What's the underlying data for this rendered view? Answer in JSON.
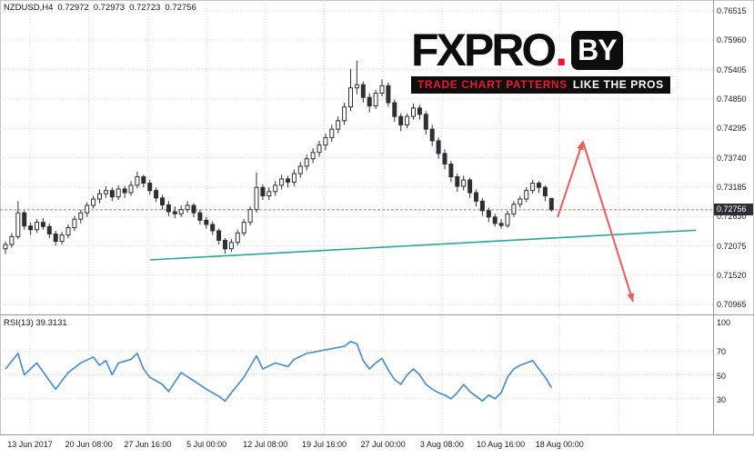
{
  "info_bar": {
    "symbol_period": "NZDUSD,H4",
    "open": "0.72972",
    "high": "0.72973",
    "low": "0.72723",
    "close": "0.72756"
  },
  "logo": {
    "brand": "FXPRO",
    "dot": ".",
    "suffix": "BY",
    "tagline_left": "TRADE CHART PATTERNS",
    "tagline_right": "LIKE THE PROS"
  },
  "price_axis": {
    "labels": [
      "0.76515",
      "0.75960",
      "0.75405",
      "0.74850",
      "0.74295",
      "0.73740",
      "0.73185",
      "0.72630",
      "0.72075",
      "0.71520",
      "0.70965"
    ],
    "current_price": "0.72756"
  },
  "rsi_panel": {
    "label": "RSI(13) 39.3131",
    "axis_labels": [
      "100",
      "70",
      "50",
      "30"
    ]
  },
  "time_axis": {
    "labels": [
      "13 Jun 2017",
      "20 Jun 08:00",
      "27 Jun 16:00",
      "5 Jul 00:00",
      "12 Jul 08:00",
      "19 Jul 16:00",
      "27 Jul 00:00",
      "3 Aug 08:00",
      "10 Aug 16:00",
      "18 Aug 00:00"
    ]
  },
  "colors": {
    "bull": "#ffffff",
    "bear": "#2e2e36",
    "candle_stroke": "#2e2e36",
    "grid": "#d9d9d9",
    "trendline": "#25a79b",
    "arrow": "#f15857",
    "rsi_line": "#4a8fd3",
    "badge_bg": "#2e2e36",
    "badge_text": "#ffffff",
    "price_line": "#bb7777",
    "logo_red": "#e8192c",
    "logo_black": "#0d0d0d"
  },
  "chart_data": [
    {
      "type": "candlestick",
      "title": "NZDUSD H4",
      "ylim": [
        0.7078,
        0.7672
      ],
      "x_labels": [
        "13 Jun 2017",
        "20 Jun 08:00",
        "27 Jun 16:00",
        "5 Jul 00:00",
        "12 Jul 08:00",
        "19 Jul 16:00",
        "27 Jul 00:00",
        "3 Aug 08:00",
        "10 Aug 16:00",
        "18 Aug 00:00"
      ],
      "current_price": 0.72756,
      "candles": [
        [
          0.7202,
          0.7216,
          0.7192,
          0.721
        ],
        [
          0.721,
          0.7232,
          0.7204,
          0.7225
        ],
        [
          0.7225,
          0.7292,
          0.722,
          0.727
        ],
        [
          0.727,
          0.7274,
          0.7238,
          0.7245
        ],
        [
          0.7245,
          0.7252,
          0.7228,
          0.7238
        ],
        [
          0.7238,
          0.7258,
          0.7232,
          0.7252
        ],
        [
          0.7252,
          0.726,
          0.7238,
          0.7244
        ],
        [
          0.7244,
          0.725,
          0.7222,
          0.723
        ],
        [
          0.723,
          0.7236,
          0.7208,
          0.7216
        ],
        [
          0.7216,
          0.7234,
          0.721,
          0.7228
        ],
        [
          0.7228,
          0.7248,
          0.7222,
          0.7242
        ],
        [
          0.7242,
          0.7264,
          0.7236,
          0.7258
        ],
        [
          0.7258,
          0.7276,
          0.725,
          0.727
        ],
        [
          0.727,
          0.729,
          0.7262,
          0.7284
        ],
        [
          0.7284,
          0.7302,
          0.7278,
          0.7296
        ],
        [
          0.7296,
          0.7314,
          0.7288,
          0.7306
        ],
        [
          0.7306,
          0.732,
          0.7298,
          0.7312
        ],
        [
          0.7312,
          0.7318,
          0.7292,
          0.73
        ],
        [
          0.73,
          0.7322,
          0.7294,
          0.7315
        ],
        [
          0.7315,
          0.7321,
          0.7298,
          0.7308
        ],
        [
          0.7308,
          0.733,
          0.7302,
          0.7322
        ],
        [
          0.7322,
          0.7348,
          0.7316,
          0.7338
        ],
        [
          0.7338,
          0.7342,
          0.7318,
          0.7326
        ],
        [
          0.7326,
          0.7332,
          0.7304,
          0.7312
        ],
        [
          0.7312,
          0.7318,
          0.729,
          0.7298
        ],
        [
          0.7298,
          0.7304,
          0.7276,
          0.7285
        ],
        [
          0.7285,
          0.7292,
          0.7264,
          0.7272
        ],
        [
          0.7272,
          0.7282,
          0.726,
          0.7268
        ],
        [
          0.7268,
          0.7284,
          0.7262,
          0.7276
        ],
        [
          0.7276,
          0.7292,
          0.727,
          0.7284
        ],
        [
          0.7284,
          0.7288,
          0.7262,
          0.727
        ],
        [
          0.727,
          0.7276,
          0.7248,
          0.7256
        ],
        [
          0.7256,
          0.7262,
          0.724,
          0.7248
        ],
        [
          0.7248,
          0.7254,
          0.7228,
          0.7236
        ],
        [
          0.7236,
          0.724,
          0.721,
          0.7218
        ],
        [
          0.7218,
          0.7222,
          0.7193,
          0.7202
        ],
        [
          0.7202,
          0.722,
          0.7196,
          0.7214
        ],
        [
          0.7214,
          0.7238,
          0.7208,
          0.7232
        ],
        [
          0.7232,
          0.7258,
          0.7226,
          0.7252
        ],
        [
          0.7252,
          0.7282,
          0.7246,
          0.7276
        ],
        [
          0.7276,
          0.7346,
          0.727,
          0.7318
        ],
        [
          0.7318,
          0.7324,
          0.7294,
          0.7302
        ],
        [
          0.7302,
          0.7318,
          0.7294,
          0.731
        ],
        [
          0.731,
          0.733,
          0.7302,
          0.7322
        ],
        [
          0.7322,
          0.7342,
          0.7314,
          0.7334
        ],
        [
          0.7334,
          0.734,
          0.7318,
          0.7328
        ],
        [
          0.7328,
          0.7352,
          0.732,
          0.7344
        ],
        [
          0.7344,
          0.7366,
          0.7336,
          0.7358
        ],
        [
          0.7358,
          0.738,
          0.735,
          0.7372
        ],
        [
          0.7372,
          0.7392,
          0.7364,
          0.7384
        ],
        [
          0.7384,
          0.7406,
          0.7376,
          0.7398
        ],
        [
          0.7398,
          0.742,
          0.7388,
          0.7412
        ],
        [
          0.7412,
          0.7436,
          0.7404,
          0.7428
        ],
        [
          0.7428,
          0.7452,
          0.742,
          0.7444
        ],
        [
          0.7444,
          0.7478,
          0.7436,
          0.747
        ],
        [
          0.747,
          0.7542,
          0.7462,
          0.7506
        ],
        [
          0.7506,
          0.7557,
          0.7494,
          0.7512
        ],
        [
          0.7512,
          0.7518,
          0.7478,
          0.7488
        ],
        [
          0.7488,
          0.7496,
          0.746,
          0.7472
        ],
        [
          0.7472,
          0.7502,
          0.7466,
          0.7496
        ],
        [
          0.7496,
          0.7522,
          0.749,
          0.751
        ],
        [
          0.751,
          0.7516,
          0.747,
          0.7478
        ],
        [
          0.7478,
          0.7484,
          0.7442,
          0.7452
        ],
        [
          0.7452,
          0.7458,
          0.7424,
          0.7436
        ],
        [
          0.7436,
          0.7458,
          0.743,
          0.7452
        ],
        [
          0.7452,
          0.7476,
          0.7446,
          0.7468
        ],
        [
          0.7468,
          0.7474,
          0.7446,
          0.7456
        ],
        [
          0.7456,
          0.7462,
          0.7418,
          0.7428
        ],
        [
          0.7428,
          0.7436,
          0.7396,
          0.7406
        ],
        [
          0.7406,
          0.7412,
          0.7372,
          0.7382
        ],
        [
          0.7382,
          0.739,
          0.7352,
          0.7362
        ],
        [
          0.7362,
          0.7368,
          0.7328,
          0.7338
        ],
        [
          0.7338,
          0.7344,
          0.731,
          0.732
        ],
        [
          0.732,
          0.734,
          0.7312,
          0.7332
        ],
        [
          0.7332,
          0.7336,
          0.7298,
          0.7308
        ],
        [
          0.7308,
          0.7314,
          0.7282,
          0.7292
        ],
        [
          0.7292,
          0.7298,
          0.7264,
          0.7274
        ],
        [
          0.7274,
          0.728,
          0.7252,
          0.7262
        ],
        [
          0.7262,
          0.7268,
          0.7244,
          0.725
        ],
        [
          0.725,
          0.7258,
          0.724,
          0.7246
        ],
        [
          0.7246,
          0.7274,
          0.7242,
          0.7268
        ],
        [
          0.7268,
          0.7292,
          0.7262,
          0.7286
        ],
        [
          0.7286,
          0.7302,
          0.728,
          0.7296
        ],
        [
          0.7296,
          0.7318,
          0.729,
          0.7312
        ],
        [
          0.7312,
          0.7332,
          0.7306,
          0.7326
        ],
        [
          0.7326,
          0.733,
          0.7308,
          0.7318
        ],
        [
          0.7318,
          0.7322,
          0.7292,
          0.7302
        ],
        [
          0.72972,
          0.72973,
          0.72723,
          0.72756
        ]
      ],
      "trendline": {
        "from": {
          "bar": 23,
          "price": 0.7181
        },
        "to": {
          "bar": 110,
          "price": 0.7237
        }
      },
      "forecast": {
        "up": {
          "from": {
            "bar": 88,
            "price": 0.7262
          },
          "to": {
            "bar": 92,
            "price": 0.7405
          }
        },
        "down": {
          "from": {
            "bar": 92,
            "price": 0.7405
          },
          "to": {
            "bar": 100,
            "price": 0.7102
          }
        }
      }
    },
    {
      "type": "line",
      "name": "RSI(13)",
      "current_value": 39.3131,
      "ylim": [
        0,
        100
      ],
      "levels": [
        70,
        50,
        30
      ],
      "points": [
        [
          0,
          55
        ],
        [
          2,
          68
        ],
        [
          3,
          50
        ],
        [
          5,
          60
        ],
        [
          7,
          45
        ],
        [
          8,
          38
        ],
        [
          10,
          52
        ],
        [
          12,
          60
        ],
        [
          14,
          65
        ],
        [
          15,
          58
        ],
        [
          16,
          62
        ],
        [
          17,
          50
        ],
        [
          18,
          60
        ],
        [
          20,
          63
        ],
        [
          21,
          68
        ],
        [
          22,
          55
        ],
        [
          23,
          48
        ],
        [
          25,
          42
        ],
        [
          26,
          36
        ],
        [
          27,
          44
        ],
        [
          28,
          52
        ],
        [
          30,
          45
        ],
        [
          32,
          38
        ],
        [
          34,
          32
        ],
        [
          35,
          28
        ],
        [
          36,
          35
        ],
        [
          38,
          48
        ],
        [
          40,
          66
        ],
        [
          41,
          55
        ],
        [
          43,
          60
        ],
        [
          45,
          57
        ],
        [
          46,
          63
        ],
        [
          48,
          68
        ],
        [
          50,
          70
        ],
        [
          52,
          72
        ],
        [
          54,
          74
        ],
        [
          55,
          78
        ],
        [
          56,
          76
        ],
        [
          57,
          62
        ],
        [
          58,
          55
        ],
        [
          59,
          60
        ],
        [
          60,
          64
        ],
        [
          61,
          54
        ],
        [
          62,
          46
        ],
        [
          63,
          42
        ],
        [
          64,
          50
        ],
        [
          65,
          55
        ],
        [
          66,
          50
        ],
        [
          67,
          42
        ],
        [
          68,
          38
        ],
        [
          69,
          35
        ],
        [
          70,
          33
        ],
        [
          71,
          30
        ],
        [
          72,
          35
        ],
        [
          73,
          42
        ],
        [
          74,
          36
        ],
        [
          75,
          32
        ],
        [
          76,
          28
        ],
        [
          77,
          33
        ],
        [
          78,
          30
        ],
        [
          79,
          35
        ],
        [
          80,
          48
        ],
        [
          81,
          55
        ],
        [
          82,
          58
        ],
        [
          83,
          60
        ],
        [
          84,
          62
        ],
        [
          85,
          55
        ],
        [
          86,
          48
        ],
        [
          87,
          39.3
        ]
      ]
    }
  ]
}
